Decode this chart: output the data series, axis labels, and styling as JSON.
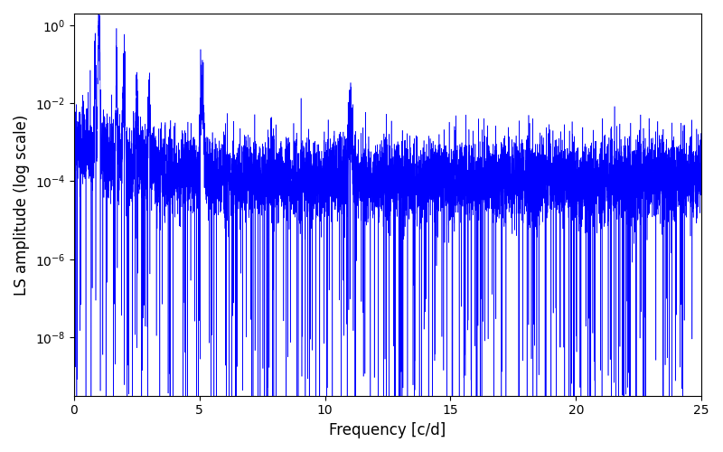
{
  "title": "",
  "xlabel": "Frequency [c/d]",
  "ylabel": "LS amplitude (log scale)",
  "xlim": [
    0,
    25
  ],
  "ylim_log": [
    -9.5,
    0.3
  ],
  "line_color": "#0000ff",
  "background_color": "#ffffff",
  "figsize": [
    8.0,
    5.0
  ],
  "dpi": 100,
  "peak1_freq": 1.0,
  "peak1_amp": 0.7,
  "peak2_freq": 2.0,
  "peak2_amp": 0.15,
  "peak3_freq": 5.1,
  "peak3_amp": 0.012,
  "peak4_freq": 11.0,
  "peak4_amp": 0.003,
  "noise_floor": 0.00012,
  "seed": 42
}
